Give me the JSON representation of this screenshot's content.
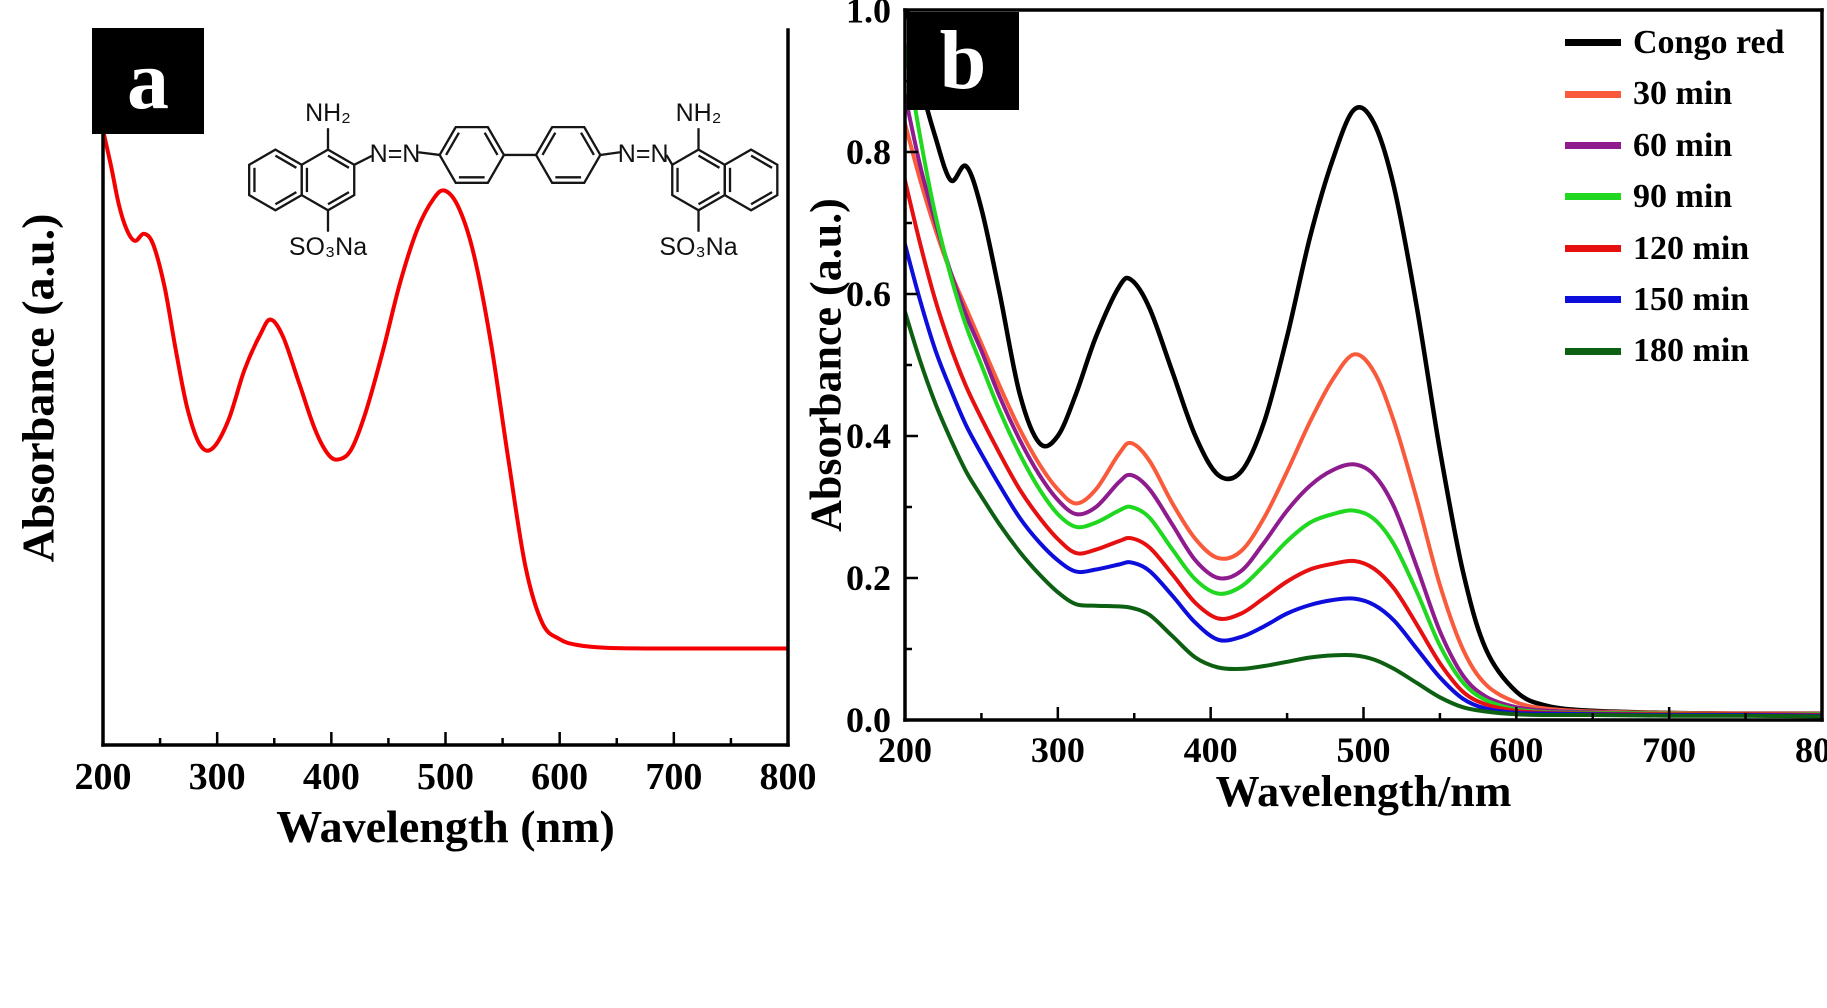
{
  "figure": {
    "panel_a": {
      "label": "a",
      "xlabel": "Wavelength (nm)",
      "ylabel": "Absorbance (a.u.)",
      "structure_labels": {
        "amine_left": "NH₂",
        "amine_right": "NH₂",
        "azo_left": "N=N",
        "azo_right": "N=N",
        "sulfonate_left": "SO₃Na",
        "sulfonate_right": "SO₃Na"
      }
    },
    "panel_b": {
      "label": "b",
      "xlabel": "Wavelength/nm",
      "ylabel": "Absorbance (a.u.)"
    }
  },
  "chart_data": [
    {
      "type": "line",
      "panel": "a",
      "title": "",
      "xlabel": "Wavelength (nm)",
      "ylabel": "Absorbance (a.u.)",
      "xlim": [
        200,
        800
      ],
      "ylim": [
        0,
        1
      ],
      "xticks": [
        200,
        300,
        400,
        500,
        600,
        700,
        800
      ],
      "xtick_labels": [
        "200",
        "300",
        "400",
        "500",
        "600",
        "700",
        "800"
      ],
      "xminor": [
        250,
        350,
        450,
        550,
        650,
        750
      ],
      "yticks": [],
      "ytick_labels": [],
      "grid": false,
      "legend_position": "none",
      "series": [
        {
          "name": "Congo red",
          "color": "#f40000",
          "width": 4,
          "x": [
            200,
            207,
            214,
            221,
            228,
            236,
            244,
            254,
            264,
            274,
            285,
            296,
            310,
            324,
            338,
            347,
            358,
            372,
            386,
            398,
            408,
            418,
            430,
            445,
            460,
            475,
            490,
            500,
            512,
            525,
            540,
            555,
            570,
            585,
            600,
            615,
            640,
            680,
            740,
            800
          ],
          "y": [
            0.86,
            0.81,
            0.755,
            0.72,
            0.705,
            0.715,
            0.7,
            0.64,
            0.55,
            0.47,
            0.42,
            0.415,
            0.455,
            0.525,
            0.575,
            0.595,
            0.57,
            0.505,
            0.44,
            0.405,
            0.4,
            0.415,
            0.465,
            0.55,
            0.645,
            0.72,
            0.765,
            0.775,
            0.75,
            0.685,
            0.56,
            0.4,
            0.25,
            0.17,
            0.148,
            0.14,
            0.136,
            0.135,
            0.135,
            0.135
          ]
        }
      ]
    },
    {
      "type": "line",
      "panel": "b",
      "title": "",
      "xlabel": "Wavelength/nm",
      "ylabel": "Absorbance (a.u.)",
      "xlim": [
        200,
        800
      ],
      "ylim": [
        0,
        1.0
      ],
      "xticks": [
        200,
        300,
        400,
        500,
        600,
        700,
        800
      ],
      "xtick_labels": [
        "200",
        "300",
        "400",
        "500",
        "600",
        "700",
        "800"
      ],
      "xminor": [
        250,
        350,
        450,
        550,
        650,
        750
      ],
      "yticks": [
        0,
        0.2,
        0.4,
        0.6,
        0.8,
        1.0
      ],
      "ytick_labels": [
        "0.0",
        "0.2",
        "0.4",
        "0.6",
        "0.8",
        "1.0"
      ],
      "yminor": [
        0.1,
        0.3,
        0.5,
        0.7,
        0.9
      ],
      "grid": false,
      "legend_position": "top-right",
      "x": [
        200,
        210,
        220,
        230,
        240,
        250,
        262,
        275,
        288,
        300,
        312,
        325,
        340,
        348,
        360,
        375,
        390,
        405,
        420,
        435,
        450,
        465,
        480,
        494,
        507,
        520,
        535,
        550,
        565,
        580,
        600,
        620,
        650,
        700,
        750,
        800
      ],
      "series": [
        {
          "name": "Congo red",
          "color": "#000000",
          "width": 4.5,
          "y": [
            1.02,
            0.9,
            0.82,
            0.76,
            0.78,
            0.72,
            0.6,
            0.46,
            0.39,
            0.4,
            0.46,
            0.54,
            0.61,
            0.62,
            0.58,
            0.49,
            0.4,
            0.345,
            0.35,
            0.42,
            0.54,
            0.68,
            0.79,
            0.86,
            0.84,
            0.75,
            0.58,
            0.38,
            0.21,
            0.1,
            0.04,
            0.02,
            0.013,
            0.01,
            0.009,
            0.009
          ]
        },
        {
          "name": "30 min",
          "color": "#fa5a3c",
          "width": 4,
          "y": [
            0.84,
            0.76,
            0.69,
            0.63,
            0.58,
            0.53,
            0.47,
            0.41,
            0.36,
            0.325,
            0.305,
            0.325,
            0.375,
            0.39,
            0.365,
            0.305,
            0.255,
            0.228,
            0.238,
            0.285,
            0.35,
            0.42,
            0.48,
            0.515,
            0.49,
            0.42,
            0.31,
            0.19,
            0.1,
            0.05,
            0.025,
            0.016,
            0.012,
            0.01,
            0.009,
            0.009
          ]
        },
        {
          "name": "60 min",
          "color": "#8e1c8e",
          "width": 4,
          "y": [
            0.88,
            0.78,
            0.7,
            0.63,
            0.57,
            0.52,
            0.455,
            0.395,
            0.345,
            0.31,
            0.29,
            0.3,
            0.335,
            0.345,
            0.325,
            0.275,
            0.225,
            0.2,
            0.21,
            0.25,
            0.295,
            0.33,
            0.352,
            0.36,
            0.345,
            0.3,
            0.215,
            0.125,
            0.063,
            0.033,
            0.018,
            0.013,
            0.011,
            0.009,
            0.008,
            0.008
          ]
        },
        {
          "name": "90 min",
          "color": "#20d820",
          "width": 4,
          "y": [
            0.95,
            0.82,
            0.71,
            0.625,
            0.555,
            0.5,
            0.435,
            0.375,
            0.325,
            0.29,
            0.272,
            0.278,
            0.295,
            0.3,
            0.285,
            0.24,
            0.198,
            0.178,
            0.188,
            0.218,
            0.252,
            0.278,
            0.29,
            0.295,
            0.283,
            0.247,
            0.18,
            0.105,
            0.053,
            0.028,
            0.015,
            0.011,
            0.01,
            0.009,
            0.008,
            0.008
          ]
        },
        {
          "name": "120 min",
          "color": "#e61010",
          "width": 4,
          "y": [
            0.76,
            0.67,
            0.59,
            0.525,
            0.47,
            0.425,
            0.375,
            0.325,
            0.285,
            0.255,
            0.235,
            0.24,
            0.252,
            0.256,
            0.243,
            0.205,
            0.165,
            0.143,
            0.15,
            0.172,
            0.195,
            0.212,
            0.22,
            0.224,
            0.213,
            0.185,
            0.134,
            0.08,
            0.04,
            0.022,
            0.013,
            0.01,
            0.009,
            0.008,
            0.008,
            0.007
          ]
        },
        {
          "name": "150 min",
          "color": "#0e0edc",
          "width": 4,
          "y": [
            0.67,
            0.59,
            0.52,
            0.465,
            0.415,
            0.375,
            0.33,
            0.285,
            0.25,
            0.225,
            0.209,
            0.212,
            0.219,
            0.222,
            0.21,
            0.175,
            0.137,
            0.113,
            0.117,
            0.132,
            0.15,
            0.162,
            0.169,
            0.171,
            0.162,
            0.14,
            0.1,
            0.06,
            0.03,
            0.016,
            0.01,
            0.009,
            0.008,
            0.007,
            0.007,
            0.006
          ]
        },
        {
          "name": "180 min",
          "color": "#0d5f12",
          "width": 4,
          "y": [
            0.575,
            0.505,
            0.445,
            0.395,
            0.35,
            0.315,
            0.275,
            0.237,
            0.205,
            0.18,
            0.163,
            0.161,
            0.16,
            0.158,
            0.148,
            0.118,
            0.088,
            0.074,
            0.072,
            0.076,
            0.082,
            0.088,
            0.091,
            0.091,
            0.085,
            0.072,
            0.052,
            0.032,
            0.018,
            0.012,
            0.008,
            0.007,
            0.007,
            0.006,
            0.006,
            0.005
          ]
        }
      ]
    }
  ]
}
